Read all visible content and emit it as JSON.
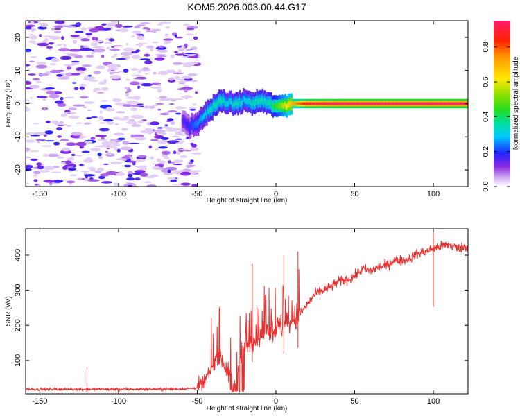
{
  "title": "KOM5.2026.003.00.44.G17",
  "chart_data": [
    {
      "type": "heatmap",
      "xlabel": "Height of straight line (km)",
      "ylabel": "Frequency (Hz)",
      "xlim": [
        -159,
        122
      ],
      "ylim": [
        -25,
        25
      ],
      "xticks": [
        -150,
        -100,
        -50,
        0,
        50,
        100
      ],
      "yticks": [
        -20,
        -10,
        0,
        10,
        20
      ],
      "noise_region": {
        "x_range": [
          -159,
          -50
        ],
        "freq_range": [
          -25,
          25
        ],
        "amplitude_range": [
          0.0,
          0.2
        ]
      },
      "ridge": {
        "x": [
          -60,
          -55,
          -50,
          -45,
          -40,
          -35,
          -30,
          -25,
          -20,
          -15,
          -10,
          -5,
          0,
          10,
          20,
          40,
          60,
          80,
          100,
          122
        ],
        "freq": [
          -5,
          -7,
          -6,
          -3,
          -1,
          1,
          0,
          0,
          1,
          0,
          1,
          0,
          -1,
          0,
          0,
          0,
          0,
          0,
          0,
          0
        ],
        "amplitude": [
          0.15,
          0.2,
          0.25,
          0.3,
          0.35,
          0.35,
          0.3,
          0.35,
          0.3,
          0.35,
          0.35,
          0.35,
          0.45,
          0.7,
          0.9,
          0.95,
          0.95,
          0.95,
          0.95,
          0.95
        ]
      },
      "colorbar": {
        "label": "Normalized spectral amplitude",
        "range": [
          0,
          0.95
        ],
        "ticks": [
          0.0,
          0.2,
          0.4,
          0.6,
          0.8
        ]
      }
    },
    {
      "type": "line",
      "xlabel": "Height of straight line (km)",
      "ylabel": "SNR (v/v)",
      "xlim": [
        -159,
        122
      ],
      "ylim": [
        5,
        475
      ],
      "xticks": [
        -150,
        -100,
        -50,
        0,
        50,
        100
      ],
      "yticks": [
        100,
        200,
        300,
        400
      ],
      "color": "#e8302e",
      "series": [
        {
          "name": "SNR",
          "x": [
            -159,
            -150,
            -130,
            -110,
            -90,
            -70,
            -55,
            -50,
            -45,
            -40,
            -37,
            -34,
            -30,
            -26,
            -22,
            -18,
            -15,
            -10,
            -5,
            0,
            5,
            10,
            15,
            20,
            25,
            30,
            35,
            40,
            45,
            50,
            55,
            60,
            65,
            70,
            75,
            80,
            85,
            90,
            95,
            100,
            105,
            110,
            115,
            122
          ],
          "y": [
            18,
            18,
            18,
            18,
            18,
            18,
            20,
            22,
            40,
            85,
            120,
            100,
            60,
            40,
            120,
            140,
            160,
            170,
            185,
            190,
            200,
            210,
            230,
            260,
            290,
            300,
            310,
            325,
            330,
            340,
            360,
            355,
            365,
            370,
            385,
            385,
            390,
            405,
            410,
            420,
            425,
            430,
            420,
            425
          ]
        }
      ],
      "annotations": [
        {
          "x": -120,
          "y": 80
        },
        {
          "x": -15,
          "y": 375
        },
        {
          "x": 5,
          "y": 400
        },
        {
          "x": 14,
          "y": 410
        },
        {
          "x": 100,
          "y": 470
        }
      ]
    }
  ]
}
